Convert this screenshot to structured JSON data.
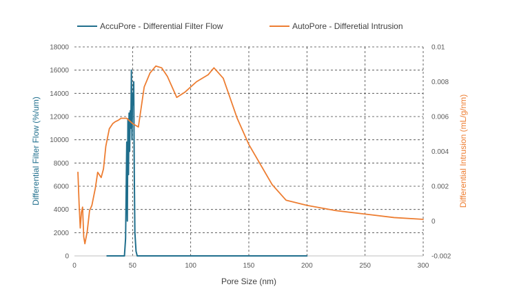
{
  "chart_data": {
    "type": "line",
    "grid": true,
    "legend_position": "top",
    "xlabel": "Pore Size (nm)",
    "xlim": [
      0,
      300
    ],
    "xticks": [
      0,
      50,
      100,
      150,
      200,
      250,
      300
    ],
    "ylabel_left": "Differential Filter Flow (%/um)",
    "ylim_left": [
      0,
      18000
    ],
    "yticks_left": [
      0,
      2000,
      4000,
      6000,
      8000,
      10000,
      12000,
      14000,
      16000,
      18000
    ],
    "ylabel_right": "Differential Intrusion (mL/g/nm)",
    "ylim_right": [
      -0.002,
      0.01
    ],
    "yticks_right": [
      -0.002,
      0,
      0.002,
      0.004,
      0.006,
      0.008,
      0.01
    ],
    "yticks_right_labels": [
      "-0.002",
      "0",
      "0.002",
      "0.004",
      "0.006",
      "0.008",
      "0.01"
    ],
    "series": [
      {
        "name": "AccuPore - Differential Filter Flow",
        "axis": "left",
        "color": "#1F6E8C",
        "x": [
          28,
          43,
          44,
          45,
          45.5,
          46,
          46.5,
          47,
          47.5,
          48,
          48.5,
          49,
          49.5,
          50,
          50.5,
          51,
          51.5,
          52,
          53,
          54,
          55,
          200
        ],
        "y": [
          0,
          0,
          1500,
          9800,
          3000,
          11800,
          7000,
          12300,
          9000,
          12500,
          11000,
          16000,
          10000,
          14000,
          13000,
          15000,
          7000,
          2000,
          400,
          0,
          0,
          0
        ]
      },
      {
        "name": "AutoPore - Differetial Intrusion",
        "axis": "right",
        "color": "#ED7D31",
        "x": [
          3,
          4,
          5,
          6,
          7,
          8,
          9,
          11,
          13,
          15,
          18,
          20,
          23,
          25,
          27,
          30,
          33,
          35,
          38,
          40,
          45,
          50,
          55,
          60,
          65,
          70,
          75,
          80,
          88,
          95,
          105,
          115,
          120,
          128,
          140,
          150,
          170,
          182,
          200,
          225,
          250,
          275,
          300
        ],
        "y": [
          0.0028,
          0.001,
          -0.0004,
          0.0005,
          0.0008,
          -0.0009,
          -0.0013,
          -0.0006,
          0.0006,
          0.0009,
          0.0019,
          0.0028,
          0.0025,
          0.003,
          0.0043,
          0.0053,
          0.0056,
          0.0057,
          0.0058,
          0.0059,
          0.0059,
          0.0056,
          0.0054,
          0.0077,
          0.0085,
          0.0089,
          0.0088,
          0.0083,
          0.0071,
          0.0074,
          0.008,
          0.0084,
          0.0088,
          0.0082,
          0.0059,
          0.0044,
          0.0021,
          0.0012,
          0.0009,
          0.0006,
          0.0004,
          0.0002,
          0.0001
        ]
      }
    ]
  }
}
